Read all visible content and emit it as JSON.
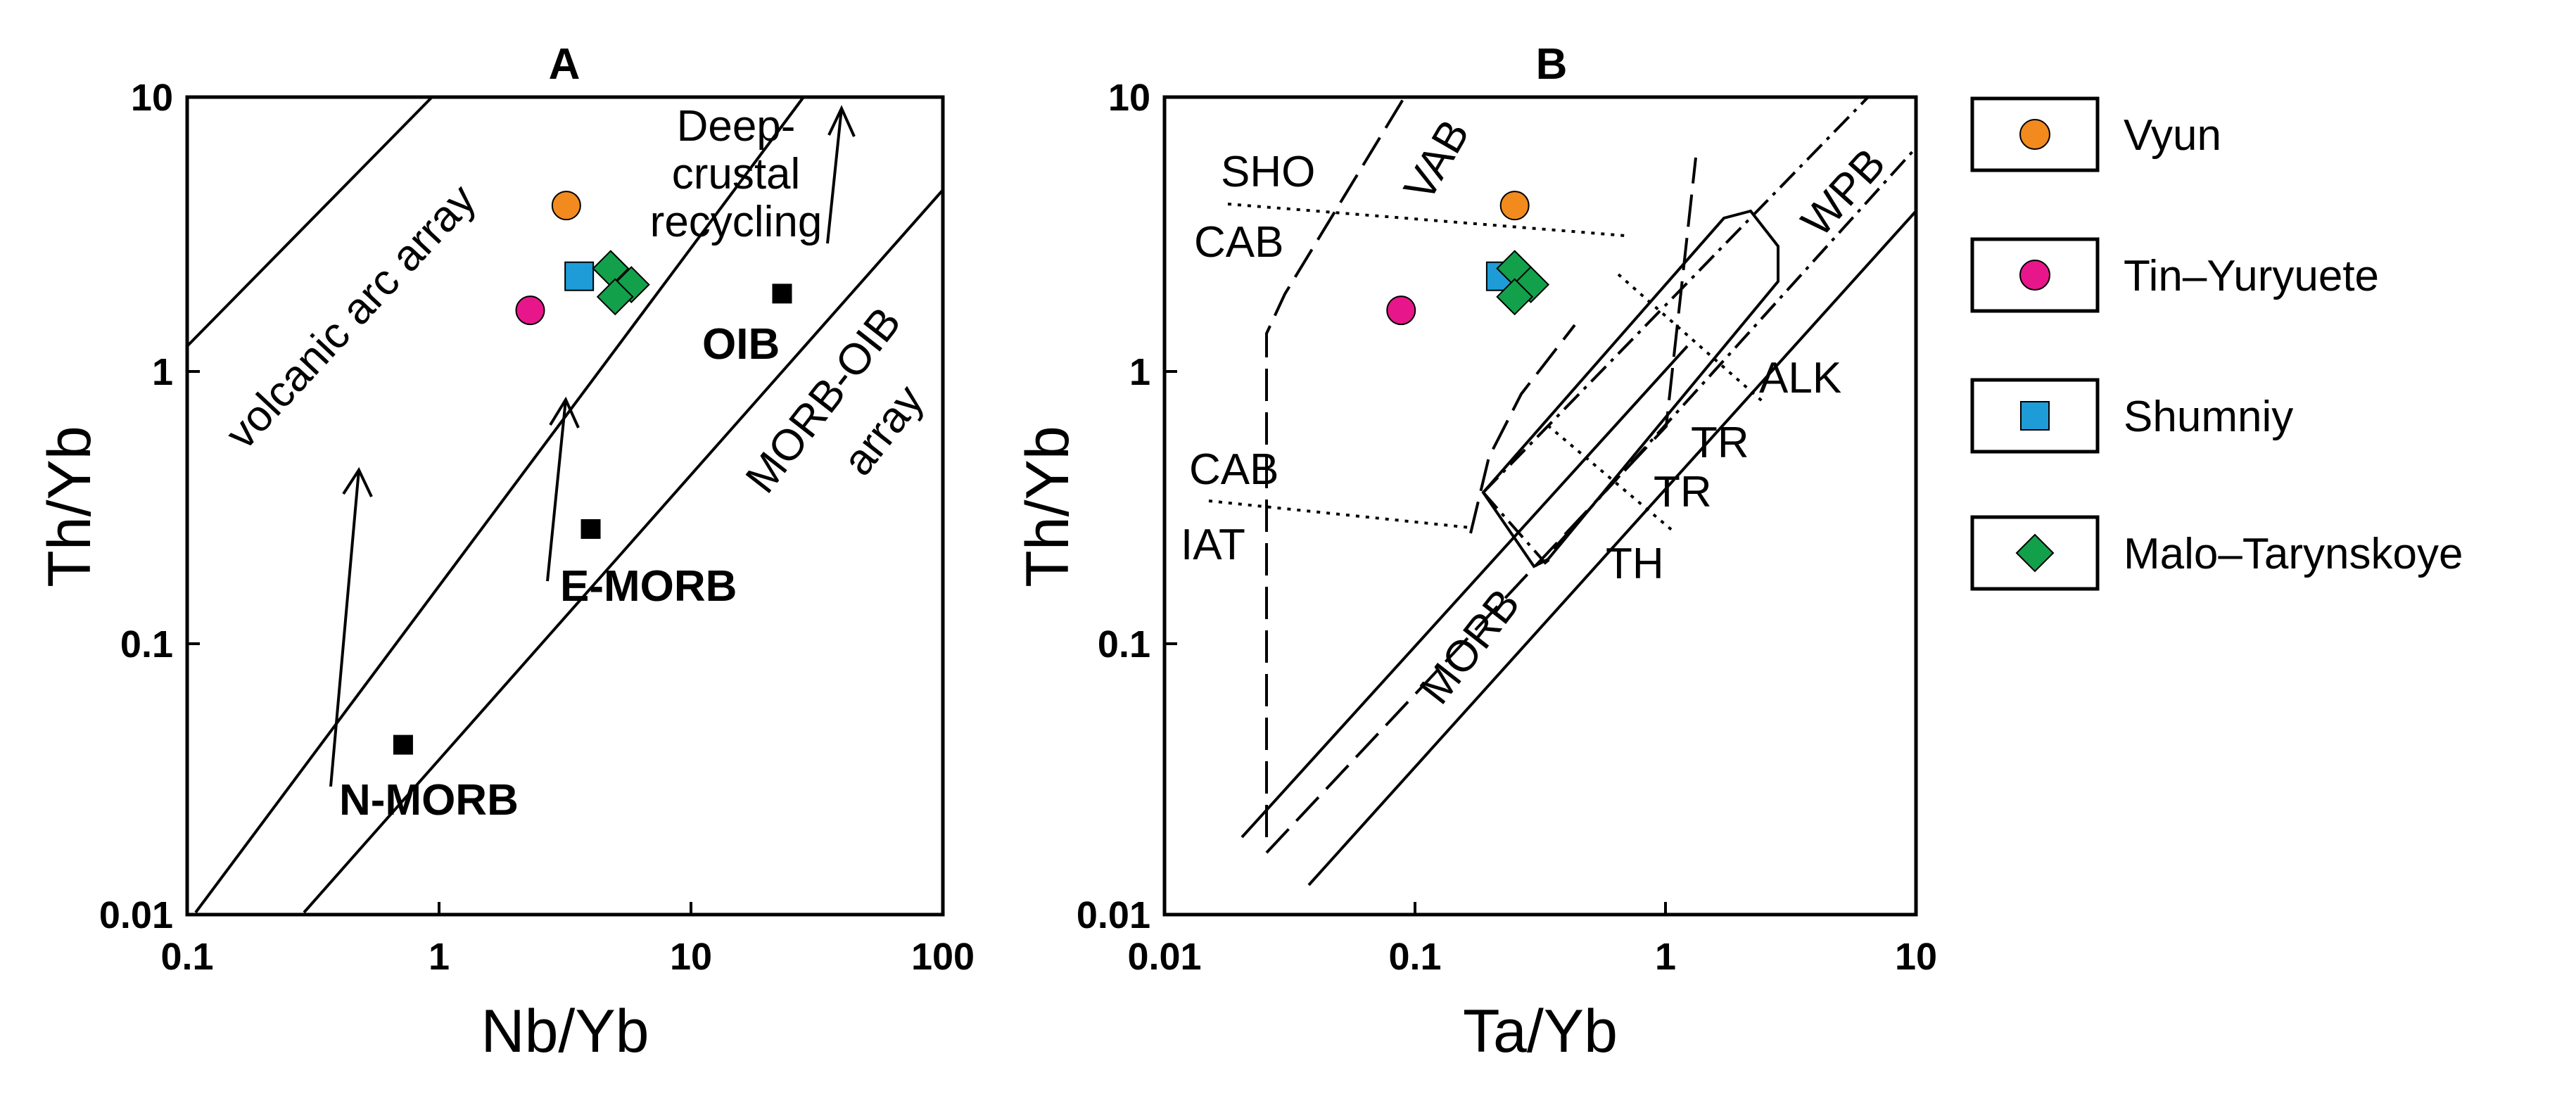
{
  "chart_data": [
    {
      "panel": "A",
      "type": "scatter",
      "title": "A",
      "xlabel": "Nb/Yb",
      "ylabel": "Th/Yb",
      "xscale": "log",
      "yscale": "log",
      "xlim": [
        0.1,
        100
      ],
      "ylim": [
        0.01,
        10
      ],
      "xticks": [
        "0.1",
        "1",
        "10",
        "100"
      ],
      "yticks": [
        "0.01",
        "0.1",
        "1",
        "10"
      ],
      "series": [
        {
          "name": "Vyun",
          "x": [
            3.2
          ],
          "y": [
            4.0
          ]
        },
        {
          "name": "Tin–Yuryuete",
          "x": [
            2.3
          ],
          "y": [
            1.65
          ]
        },
        {
          "name": "Shumniy",
          "x": [
            3.6
          ],
          "y": [
            2.2
          ]
        },
        {
          "name": "Malo–Tarynskoye",
          "x": [
            4.8,
            5.8,
            5.0
          ],
          "y": [
            2.35,
            2.05,
            1.85
          ]
        }
      ],
      "references": [
        {
          "name": "N-MORB",
          "x": 0.72,
          "y": 0.042
        },
        {
          "name": "E-MORB",
          "x": 4.0,
          "y": 0.26
        },
        {
          "name": "OIB",
          "x": 23,
          "y": 1.9
        }
      ],
      "annotations": [
        "volcanic arc array",
        "Deep-",
        "crustal",
        "recycling",
        "MORB-OIB",
        "array",
        "N-MORB",
        "E-MORB",
        "OIB"
      ]
    },
    {
      "panel": "B",
      "type": "scatter",
      "title": "B",
      "xlabel": "Ta/Yb",
      "ylabel": "Th/Yb",
      "xscale": "log",
      "yscale": "log",
      "xlim": [
        0.01,
        10
      ],
      "ylim": [
        0.01,
        10
      ],
      "xticks": [
        "0.01",
        "0.1",
        "1",
        "10"
      ],
      "yticks": [
        "0.01",
        "0.1",
        "1",
        "10"
      ],
      "series": [
        {
          "name": "Vyun",
          "x": [
            0.25
          ],
          "y": [
            4.0
          ]
        },
        {
          "name": "Tin–Yuryuete",
          "x": [
            0.088
          ],
          "y": [
            1.65
          ]
        },
        {
          "name": "Shumniy",
          "x": [
            0.22
          ],
          "y": [
            2.2
          ]
        },
        {
          "name": "Malo–Tarynskoye",
          "x": [
            0.25,
            0.29,
            0.25
          ],
          "y": [
            2.35,
            2.05,
            1.85
          ]
        }
      ],
      "annotations": [
        "SHO",
        "VAB",
        "CAB",
        "WPB",
        "ALK",
        "TR",
        "TR",
        "CAB",
        "IAT",
        "TH",
        "MORB"
      ]
    }
  ],
  "legend": [
    {
      "label": "Vyun",
      "marker": "circle",
      "color": "#F28A1E"
    },
    {
      "label": "Tin–Yuryuete",
      "marker": "circle",
      "color": "#E8168B"
    },
    {
      "label": "Shumniy",
      "marker": "square",
      "color": "#1E9CD7"
    },
    {
      "label": "Malo–Tarynskoye",
      "marker": "diamond",
      "color": "#13A04A"
    }
  ],
  "reference_marker_color": "#000000"
}
